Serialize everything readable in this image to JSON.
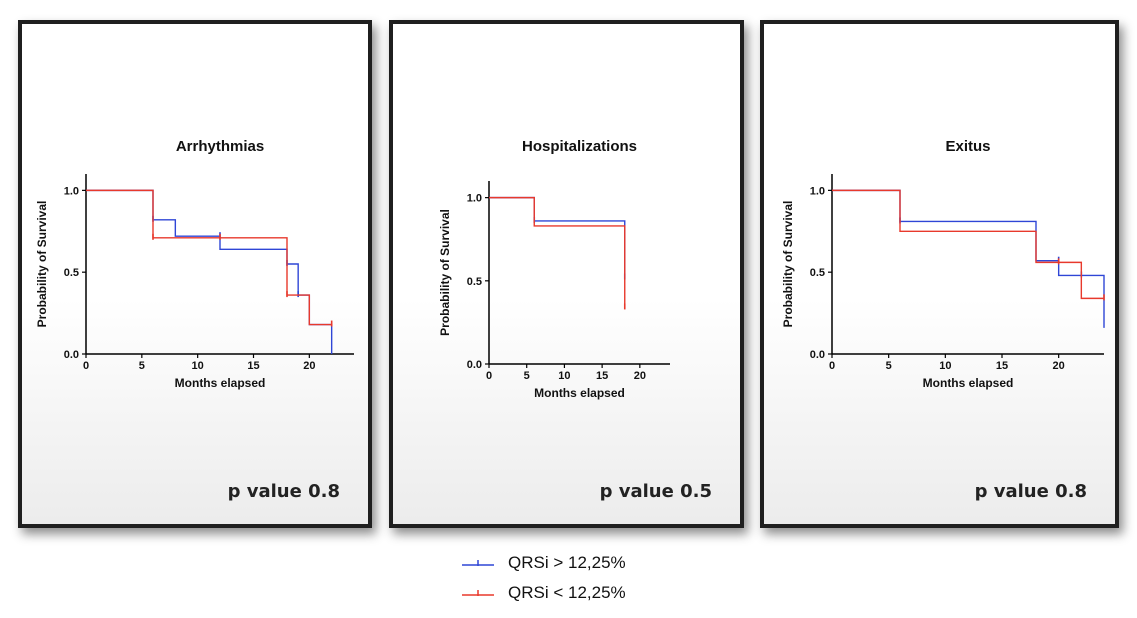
{
  "chart_data": [
    {
      "type": "line",
      "title": "Arrhythmias",
      "xlabel": "Months elapsed",
      "ylabel": "Probability of Survival",
      "xlim": [
        0,
        24
      ],
      "ylim": [
        0,
        1.1
      ],
      "xticks": [
        "0",
        "5",
        "10",
        "15",
        "20"
      ],
      "yticks": [
        "0.0",
        "0.5",
        "1.0"
      ],
      "p_value": "p value 0.8",
      "series": [
        {
          "name": "QRSi > 12,25%",
          "color": "#2f46d6",
          "x": [
            0,
            6,
            6,
            8,
            12,
            18,
            19,
            20,
            22,
            22
          ],
          "y": [
            1.0,
            1.0,
            0.82,
            0.72,
            0.64,
            0.55,
            0.36,
            0.18,
            0.18,
            0.0
          ],
          "censors": [
            [
              6,
              0.82
            ],
            [
              12,
              0.72
            ],
            [
              18,
              0.55
            ],
            [
              19,
              0.36
            ]
          ]
        },
        {
          "name": "QRSi < 12,25%",
          "color": "#e8392c",
          "x": [
            0,
            6,
            6,
            18,
            20,
            22
          ],
          "y": [
            1.0,
            1.0,
            0.71,
            0.36,
            0.18,
            0.18
          ],
          "censors": [
            [
              6,
              0.71
            ],
            [
              12,
              0.71
            ],
            [
              18,
              0.36
            ],
            [
              22,
              0.18
            ]
          ]
        }
      ]
    },
    {
      "type": "line",
      "title": "Hospitalizations",
      "xlabel": "Months elapsed",
      "ylabel": "Probability of Survival",
      "xlim": [
        0,
        24
      ],
      "ylim": [
        0,
        1.1
      ],
      "xticks": [
        "0",
        "5",
        "10",
        "15",
        "20"
      ],
      "yticks": [
        "0.0",
        "0.5",
        "1.0"
      ],
      "p_value": "p value 0.5",
      "series": [
        {
          "name": "QRSi > 12,25%",
          "color": "#2f46d6",
          "x": [
            0,
            6,
            18,
            18
          ],
          "y": [
            1.0,
            0.86,
            0.86,
            0.52
          ],
          "censors": [
            [
              6,
              0.86
            ],
            [
              18,
              0.52
            ]
          ]
        },
        {
          "name": "QRSi < 12,25%",
          "color": "#e8392c",
          "x": [
            0,
            6,
            18,
            18
          ],
          "y": [
            1.0,
            0.83,
            0.83,
            0.34
          ],
          "censors": [
            [
              18,
              0.34
            ]
          ]
        }
      ]
    },
    {
      "type": "line",
      "title": "Exitus",
      "xlabel": "Months elapsed",
      "ylabel": "Probability of Survival",
      "xlim": [
        0,
        24
      ],
      "ylim": [
        0,
        1.1
      ],
      "xticks": [
        "0",
        "5",
        "10",
        "15",
        "20"
      ],
      "yticks": [
        "0.0",
        "0.5",
        "1.0"
      ],
      "p_value": "p value 0.8",
      "series": [
        {
          "name": "QRSi > 12,25%",
          "color": "#2f46d6",
          "x": [
            0,
            6,
            18,
            20,
            24,
            24
          ],
          "y": [
            1.0,
            0.81,
            0.57,
            0.48,
            0.48,
            0.16
          ],
          "censors": [
            [
              6,
              0.81
            ],
            [
              20,
              0.57
            ],
            [
              22,
              0.48
            ]
          ]
        },
        {
          "name": "QRSi < 12,25%",
          "color": "#e8392c",
          "x": [
            0,
            6,
            18,
            22,
            24
          ],
          "y": [
            1.0,
            0.75,
            0.56,
            0.34,
            0.34
          ],
          "censors": [
            [
              20,
              0.56
            ],
            [
              24,
              0.34
            ]
          ]
        }
      ]
    }
  ],
  "legend": [
    {
      "label": "QRSi > 12,25%",
      "color": "#2f46d6"
    },
    {
      "label": "QRSi < 12,25%",
      "color": "#e8392c"
    }
  ]
}
